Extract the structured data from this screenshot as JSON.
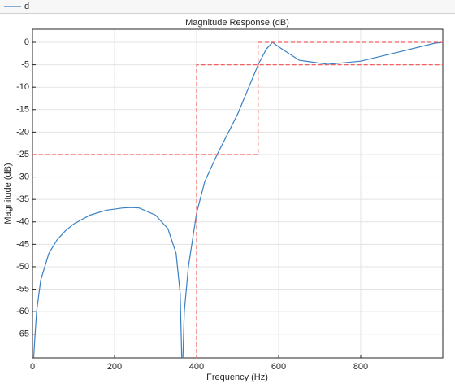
{
  "chart_data": {
    "type": "line",
    "title": "Magnitude Response (dB)",
    "x_label": "Frequency (Hz)",
    "y_label": "Magnitude (dB)",
    "xlim": [
      0,
      1000
    ],
    "ylim": [
      -70.3,
      2.9
    ],
    "xticks": [
      0,
      200,
      400,
      600,
      800
    ],
    "yticks": [
      0,
      -5,
      -10,
      -15,
      -20,
      -25,
      -30,
      -35,
      -40,
      -45,
      -50,
      -55,
      -60,
      -65
    ],
    "grid": true,
    "series": [
      {
        "name": "d",
        "color": "#3a80c3",
        "dash": false,
        "x": [
          0,
          5,
          10,
          20,
          40,
          60,
          80,
          100,
          140,
          180,
          220,
          240,
          260,
          300,
          330,
          350,
          360,
          365,
          370,
          380,
          400,
          420,
          450,
          500,
          550,
          570,
          585,
          600,
          650,
          720,
          800,
          900,
          980,
          1000
        ],
        "values": [
          -75,
          -67,
          -60,
          -53,
          -47,
          -44,
          -42,
          -40.5,
          -38.5,
          -37.4,
          -36.9,
          -36.8,
          -36.9,
          -38.5,
          -41.5,
          -47,
          -56,
          -75,
          -60,
          -50,
          -38,
          -31,
          -25,
          -16,
          -5,
          -1.5,
          0,
          -1,
          -4,
          -4.9,
          -4.2,
          -2,
          -0.2,
          0
        ]
      },
      {
        "color": "#f26060",
        "dash": true,
        "x": [
          0,
          550,
          550,
          1000
        ],
        "values": [
          -25,
          -25,
          0,
          0
        ]
      },
      {
        "color": "#f26060",
        "dash": true,
        "x": [
          400,
          400,
          1000
        ],
        "values": [
          -75,
          -5,
          -5
        ]
      }
    ]
  }
}
